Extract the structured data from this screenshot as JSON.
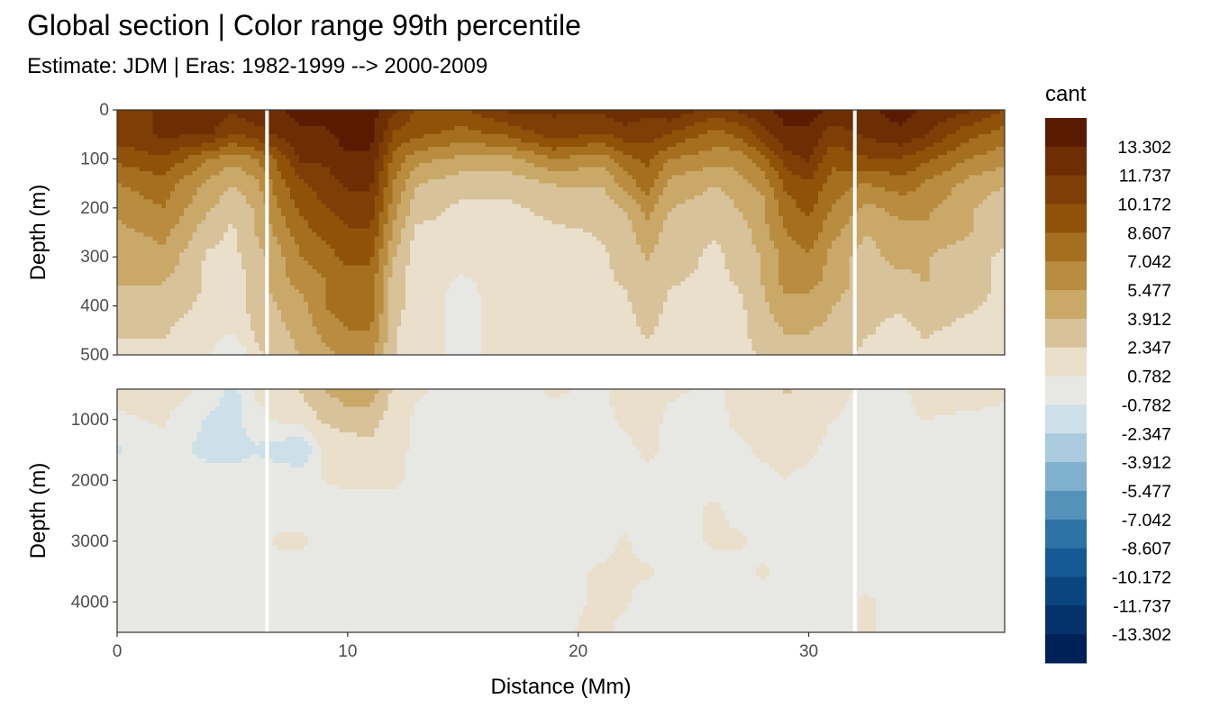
{
  "chart_data": {
    "type": "heatmap",
    "title": "Global section | Color range 99th percentile",
    "subtitle": "Estimate: JDM  | Eras: 1982-1999 --> 2000-2009",
    "xlabel": "Distance (Mm)",
    "ylabel": "Depth (m)",
    "x_range": [
      0,
      38.5
    ],
    "x_ticks": [
      0,
      10,
      20,
      30
    ],
    "panels": [
      {
        "name": "upper",
        "y_range": [
          0,
          500
        ],
        "y_reversed": true,
        "y_ticks": [
          0,
          100,
          200,
          300,
          400,
          500
        ]
      },
      {
        "name": "lower",
        "y_range": [
          500,
          4500
        ],
        "y_reversed": true,
        "y_ticks": [
          1000,
          2000,
          3000,
          4000
        ]
      }
    ],
    "legend": {
      "title": "cant",
      "position": "right",
      "breaks": [
        13.302,
        11.737,
        10.172,
        8.607,
        7.042,
        5.477,
        3.912,
        2.347,
        0.782,
        -0.782,
        -2.347,
        -3.912,
        -5.477,
        -7.042,
        -8.607,
        -10.172,
        -11.737,
        -13.302
      ],
      "colors": [
        "#5a1a00",
        "#6e2e04",
        "#7f3e06",
        "#8f5208",
        "#a56f1f",
        "#b98c40",
        "#c9a868",
        "#d8c29a",
        "#eadfcb",
        "#e7e8e4",
        "#cde0ea",
        "#a9cbdd",
        "#7fb0ce",
        "#5592ba",
        "#2e73a6",
        "#155a94",
        "#0b4580",
        "#06326b",
        "#002058"
      ]
    },
    "section_gaps_x": [
      6.5,
      32.0
    ],
    "grid": true,
    "values": {
      "upper": {
        "x": [
          0,
          2,
          4,
          5,
          6,
          7,
          8,
          9,
          10,
          11,
          12,
          13,
          15,
          17,
          19,
          21,
          22,
          23,
          24,
          26,
          27,
          28,
          29,
          30,
          31,
          32.5,
          34,
          35,
          37,
          38.5
        ],
        "depth": [
          0,
          50,
          100,
          150,
          200,
          250,
          300,
          350,
          400,
          450,
          500
        ],
        "cant": [
          [
            11,
            12,
            13,
            12,
            13,
            13,
            14,
            14,
            14,
            14,
            12,
            10,
            10,
            12,
            12,
            12,
            13,
            12,
            13,
            11,
            12,
            13,
            14,
            14,
            13,
            13,
            14,
            13,
            12,
            10
          ],
          [
            11,
            12,
            12,
            10,
            11,
            12,
            13,
            13,
            14,
            14,
            10,
            9,
            8,
            9,
            11,
            10,
            11,
            11,
            10,
            8,
            9,
            11,
            13,
            13,
            11,
            12,
            13,
            12,
            9,
            8
          ],
          [
            9,
            10,
            7,
            6,
            7,
            9,
            12,
            12,
            13,
            13,
            8,
            6,
            5,
            5,
            7,
            6,
            8,
            9,
            7,
            6,
            6,
            8,
            11,
            12,
            9,
            10,
            10,
            9,
            7,
            6
          ],
          [
            7,
            8,
            5,
            4,
            5,
            8,
            10,
            11,
            12,
            12,
            7,
            4,
            3,
            3,
            4,
            4,
            6,
            8,
            5,
            4,
            5,
            6,
            9,
            10,
            8,
            7,
            8,
            7,
            5,
            4
          ],
          [
            6,
            7,
            4,
            3,
            4,
            7,
            9,
            10,
            11,
            11,
            6,
            3,
            2,
            2,
            3,
            3,
            4,
            6,
            4,
            3,
            4,
            5,
            8,
            9,
            7,
            5,
            6,
            6,
            4,
            3
          ],
          [
            5,
            6,
            3,
            2,
            4,
            6,
            8,
            9,
            10,
            10,
            5,
            2,
            2,
            1.5,
            2,
            2.5,
            3,
            5,
            3,
            2.5,
            3,
            5,
            7,
            8,
            6,
            4,
            5,
            5,
            4,
            3
          ],
          [
            4,
            5,
            2,
            2,
            3,
            5,
            7,
            8,
            9,
            9,
            4,
            1.5,
            1.5,
            1.5,
            2,
            2,
            3,
            4,
            3,
            2,
            3,
            4,
            6,
            7,
            5,
            3,
            5,
            4,
            3,
            2
          ],
          [
            4,
            4,
            2,
            1.5,
            3,
            5,
            6,
            7,
            8,
            8,
            3,
            1.5,
            0.5,
            1.5,
            2,
            2,
            2.5,
            3.5,
            2.5,
            2,
            2.5,
            4,
            6,
            6,
            5,
            3,
            3,
            4,
            3,
            2
          ],
          [
            3,
            3,
            2,
            1.5,
            3,
            4,
            5,
            7,
            8,
            8,
            3,
            1.5,
            0.3,
            1.5,
            1.8,
            1.8,
            2,
            3,
            2,
            1.8,
            2,
            3.5,
            5,
            5,
            4,
            2.5,
            2.5,
            3,
            2.5,
            2
          ],
          [
            2.5,
            2.5,
            1.5,
            1,
            2.5,
            3.5,
            4.5,
            6,
            7,
            7,
            2.5,
            1.5,
            0.3,
            1.5,
            1.8,
            1.5,
            2,
            2.5,
            2,
            1.5,
            2,
            3,
            4,
            4,
            3.5,
            2.5,
            2,
            2.5,
            2,
            2
          ],
          [
            2,
            2,
            1,
            -1,
            2,
            3,
            4,
            5,
            6,
            6,
            2.5,
            1.5,
            0.3,
            1.5,
            1.5,
            1.5,
            2,
            2,
            1.5,
            1.5,
            2,
            2.5,
            3.5,
            3.5,
            3,
            2,
            2,
            2,
            2,
            2
          ]
        ]
      },
      "lower": {
        "x": [
          0,
          2,
          4,
          5,
          6,
          7,
          8,
          9,
          10,
          11,
          12,
          13,
          15,
          17,
          19,
          21,
          22,
          23,
          24,
          26,
          27,
          28,
          29,
          30,
          31,
          32.5,
          34,
          35,
          37,
          38.5
        ],
        "depth": [
          500,
          1000,
          1500,
          2000,
          2500,
          3000,
          3500,
          4000,
          4500
        ],
        "cant": [
          [
            1.5,
            1.5,
            0.5,
            -1.5,
            1,
            2,
            2.5,
            4,
            5,
            5,
            2,
            1,
            0.3,
            0.3,
            1,
            0.5,
            1.5,
            1.8,
            1,
            0.5,
            1.5,
            2,
            2.5,
            2,
            1.5,
            0.3,
            0.5,
            1.5,
            1.5,
            1
          ],
          [
            0.5,
            1,
            -1,
            -1.5,
            0.3,
            1,
            1.5,
            2.5,
            3,
            3,
            1.5,
            0.5,
            0.2,
            0.2,
            0.3,
            0.3,
            1,
            1.2,
            0.5,
            0.3,
            1.2,
            1.5,
            1.5,
            1.2,
            0.8,
            0.2,
            0.3,
            0.8,
            0.5,
            0.5
          ],
          [
            -1,
            0.3,
            -1.5,
            -1.5,
            -1,
            -1.5,
            -2.5,
            1.5,
            1.5,
            2,
            1.2,
            0.5,
            0.2,
            0.2,
            0.2,
            0.2,
            0.5,
            1,
            0.5,
            0.3,
            0.5,
            1,
            1,
            1,
            0.5,
            0.2,
            0.2,
            0.5,
            0.5,
            0.5
          ],
          [
            0.2,
            0.2,
            0.2,
            0.2,
            0.3,
            0.3,
            0.5,
            0.8,
            1,
            1,
            1,
            0.5,
            0.2,
            0.2,
            0.2,
            0.2,
            0.3,
            0.5,
            0.8,
            0.3,
            0.3,
            0.5,
            0.8,
            0.5,
            0.3,
            0.2,
            0.2,
            0.2,
            0.2,
            0.2
          ],
          [
            0.2,
            0.2,
            0.2,
            0.2,
            0.2,
            0.2,
            0.2,
            0.2,
            0.2,
            0.2,
            0.2,
            0.2,
            0.2,
            0.2,
            0.2,
            0.2,
            0.2,
            0.3,
            0.3,
            1,
            0.3,
            0.2,
            0.2,
            0.2,
            0.2,
            0.2,
            0.2,
            0.2,
            0.2,
            0.2
          ],
          [
            0.2,
            0.2,
            0.2,
            0.2,
            0.2,
            1,
            1,
            0.2,
            0.2,
            0.2,
            0.2,
            0.2,
            0.2,
            0.2,
            0.2,
            0.2,
            1,
            0.2,
            0.2,
            1,
            1,
            0.3,
            0.2,
            0.2,
            0.2,
            0.2,
            0.2,
            0.2,
            0.2,
            0.2
          ],
          [
            0.2,
            0.2,
            0.2,
            0.2,
            0.2,
            0.2,
            0.2,
            0.2,
            0.2,
            0.2,
            0.2,
            0.2,
            0.2,
            0.2,
            0.2,
            1,
            1,
            1,
            0.2,
            0.2,
            0.3,
            1,
            0.2,
            0.2,
            0.2,
            0.2,
            0.2,
            0.2,
            0.2,
            0.2
          ],
          [
            0.2,
            0.2,
            0.2,
            0.2,
            0.2,
            0.2,
            0.2,
            0.2,
            0.2,
            0.2,
            0.2,
            0.2,
            0.2,
            0.2,
            0.2,
            1,
            1,
            0.2,
            0.2,
            0.2,
            0.2,
            0.2,
            0.2,
            0.2,
            0.2,
            1,
            0.2,
            0.2,
            0.2,
            0.2
          ],
          [
            0.2,
            0.2,
            0.2,
            0.2,
            0.2,
            0.2,
            0.2,
            0.2,
            0.2,
            0.2,
            0.2,
            0.2,
            0.2,
            0.2,
            0.2,
            1.5,
            0.2,
            0.2,
            0.2,
            0.2,
            0.2,
            0.2,
            0.2,
            0.2,
            0.2,
            1,
            0.2,
            0.2,
            0.2,
            0.2
          ]
        ]
      }
    }
  }
}
